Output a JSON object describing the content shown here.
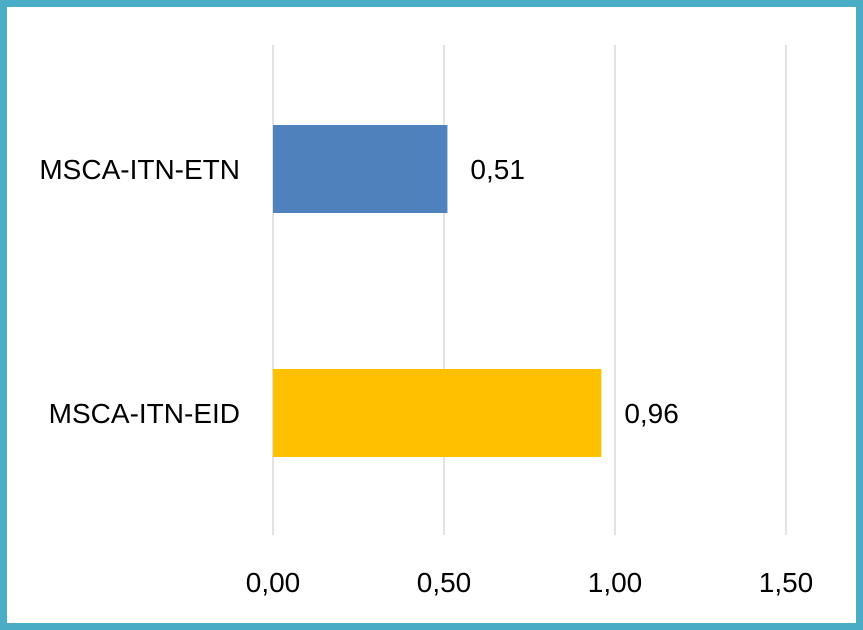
{
  "chart_data": {
    "type": "bar",
    "orientation": "horizontal",
    "title": "",
    "xlabel": "",
    "ylabel": "",
    "categories": [
      "MSCA-ITN-ETN",
      "MSCA-ITN-EID"
    ],
    "values": [
      0.51,
      0.96
    ],
    "value_labels": [
      "0,51",
      "0,96"
    ],
    "bar_colors": [
      "#4f81bd",
      "#ffc000"
    ],
    "xlim": [
      0,
      1.5
    ],
    "x_ticks": [
      0,
      0.5,
      1.0,
      1.5
    ],
    "x_tick_labels": [
      "0,00",
      "0,50",
      "1,00",
      "1,50"
    ],
    "grid": true,
    "legend": "none",
    "frame_color": "#4bacc6",
    "grid_color": "#d9d9d9"
  }
}
